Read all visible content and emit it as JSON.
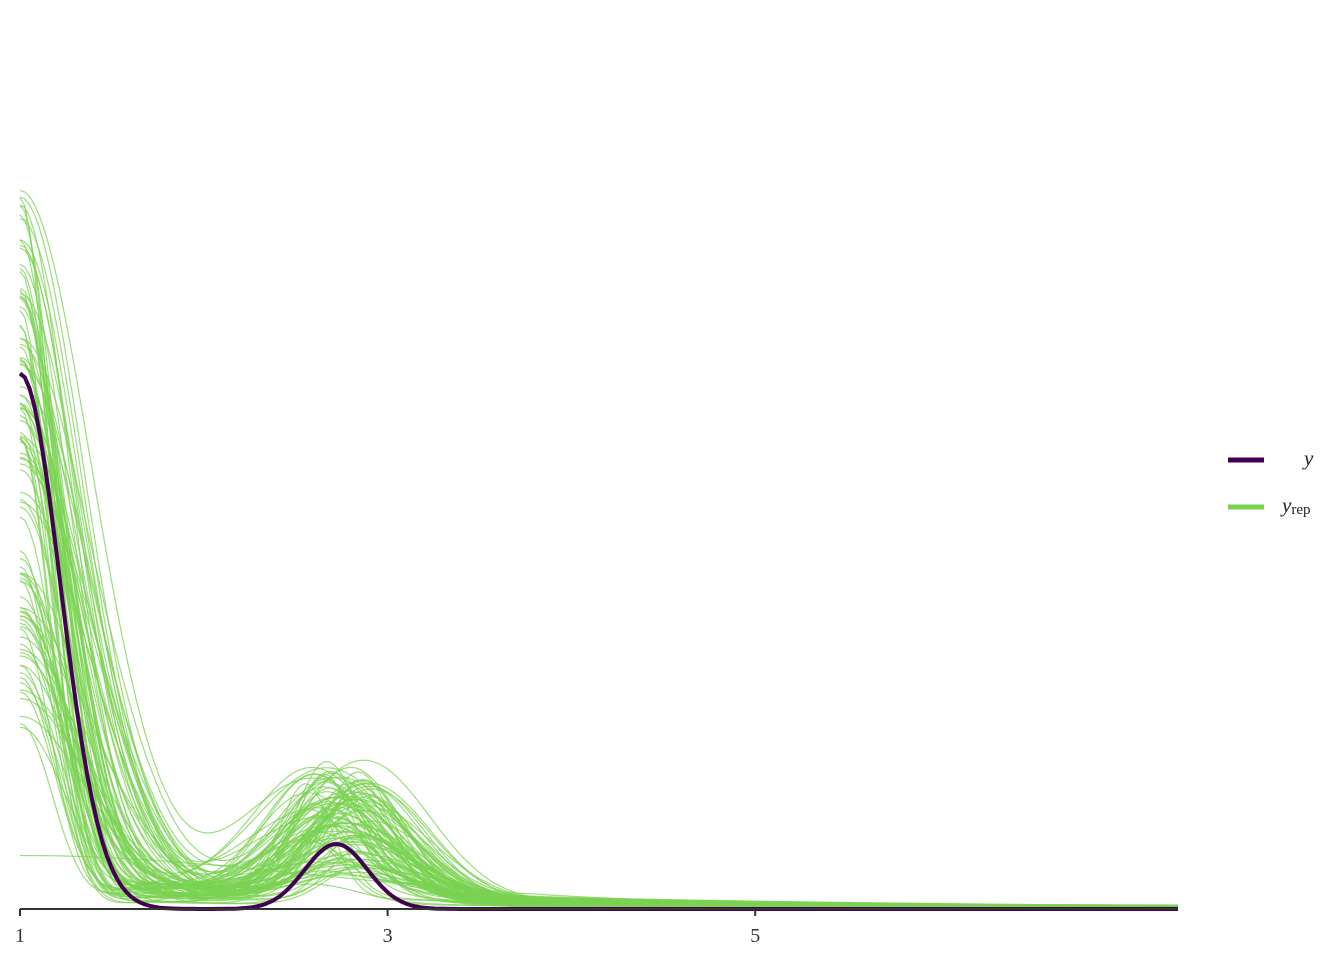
{
  "chart_data": {
    "type": "line",
    "title": "",
    "xlabel": "",
    "ylabel": "",
    "x_ticks": [
      "1",
      "3",
      "5"
    ],
    "xlim": [
      1,
      7.3
    ],
    "grid": false,
    "legend_placement": "right",
    "colors": {
      "y": "#440154",
      "yrep": "#7ad151"
    },
    "series": [
      {
        "name": "y",
        "legend_main": "y",
        "legend_sub": "",
        "kind": "observed density",
        "peaks": [
          {
            "x": 1.0,
            "density": 2.55,
            "sd": 0.22
          },
          {
            "x": 2.72,
            "density": 0.31,
            "sd": 0.17
          }
        ]
      },
      {
        "name": "yrep",
        "legend_main": "y",
        "legend_sub": "rep",
        "kind": "replicated densities",
        "draws": 100
      }
    ]
  }
}
